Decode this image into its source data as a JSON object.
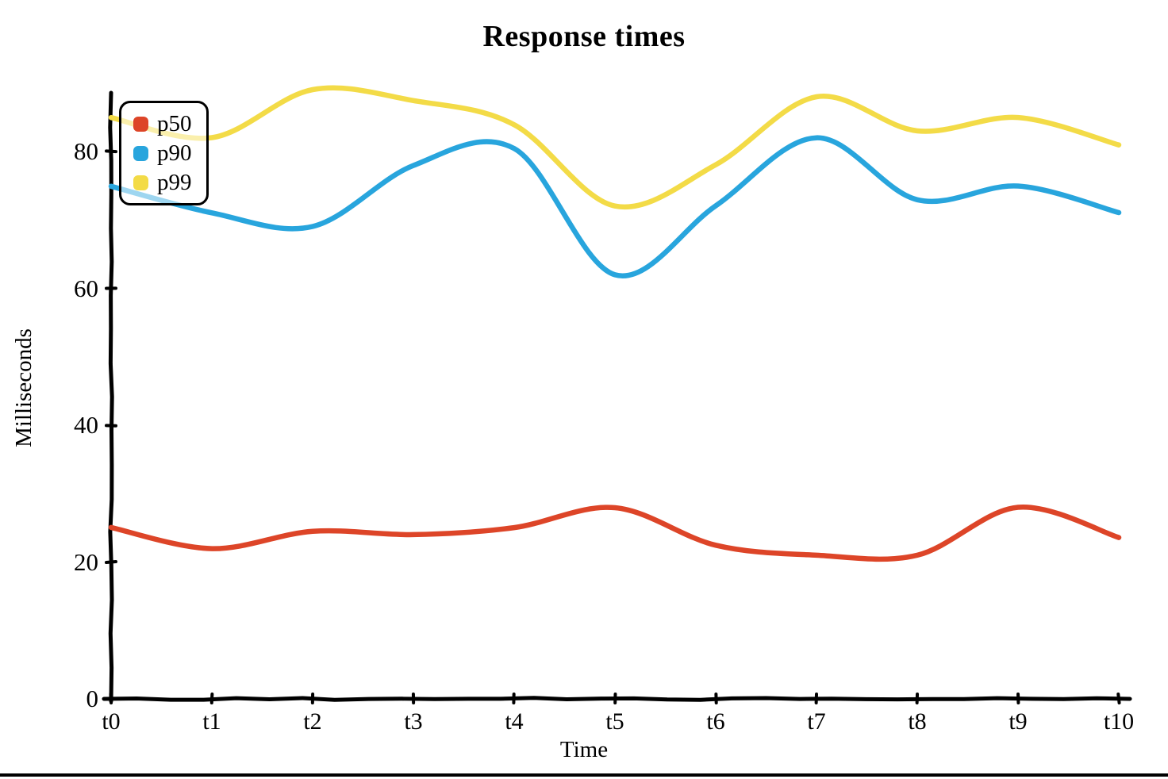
{
  "chart_data": {
    "type": "line",
    "title": "Response times",
    "xlabel": "Time",
    "ylabel": "Milliseconds",
    "categories": [
      "t0",
      "t1",
      "t2",
      "t3",
      "t4",
      "t5",
      "t6",
      "t7",
      "t8",
      "t9",
      "t10"
    ],
    "yticks": [
      0,
      20,
      40,
      60,
      80
    ],
    "ytick_labels": [
      "0",
      "20",
      "40",
      "60",
      "80"
    ],
    "ylim": [
      0,
      90
    ],
    "grid": false,
    "legend_position": "top-left",
    "axis_color": "#000000",
    "background_color": "#ffffff",
    "series": [
      {
        "name": "p50",
        "color": "#dd4528",
        "values": [
          25,
          22,
          24.5,
          24,
          25,
          28,
          22.5,
          21,
          21,
          28,
          23.5
        ]
      },
      {
        "name": "p90",
        "color": "#28a5dd",
        "values": [
          75,
          71,
          69,
          78,
          80.5,
          62,
          72,
          82,
          73,
          75,
          71
        ]
      },
      {
        "name": "p99",
        "color": "#f3db47",
        "values": [
          85,
          82,
          89,
          87.5,
          84,
          72,
          78,
          88,
          83,
          85,
          81
        ]
      }
    ]
  }
}
